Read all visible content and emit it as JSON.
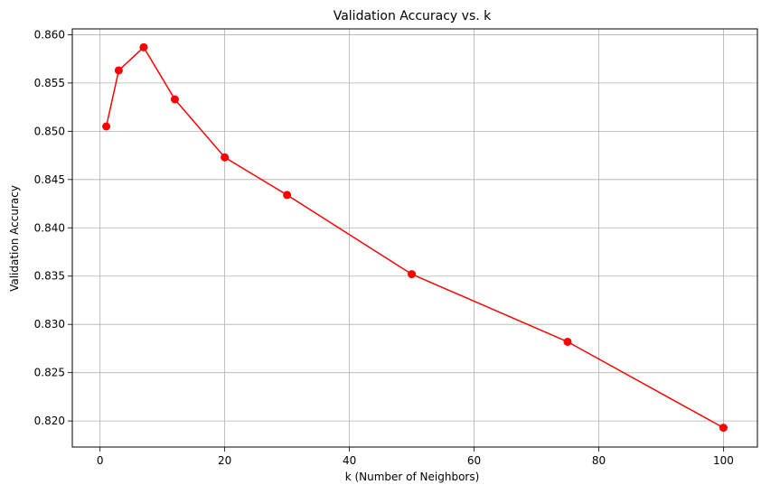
{
  "chart_data": {
    "type": "line",
    "title": "Validation Accuracy vs. k",
    "xlabel": "k (Number of Neighbors)",
    "ylabel": "Validation Accuracy",
    "xlim": [
      -4.45,
      105.45
    ],
    "ylim": [
      0.8173,
      0.8606
    ],
    "xticks": [
      0,
      20,
      40,
      60,
      80,
      100
    ],
    "yticks": [
      0.82,
      0.825,
      0.83,
      0.835,
      0.84,
      0.845,
      0.85,
      0.855,
      0.86
    ],
    "grid": true,
    "series": [
      {
        "color": "#ff0000",
        "marker": "circle",
        "x": [
          1,
          3,
          7,
          12,
          20,
          30,
          50,
          75,
          100
        ],
        "y": [
          0.8505,
          0.8563,
          0.8587,
          0.8533,
          0.8473,
          0.8434,
          0.8352,
          0.8282,
          0.8193
        ]
      }
    ]
  }
}
